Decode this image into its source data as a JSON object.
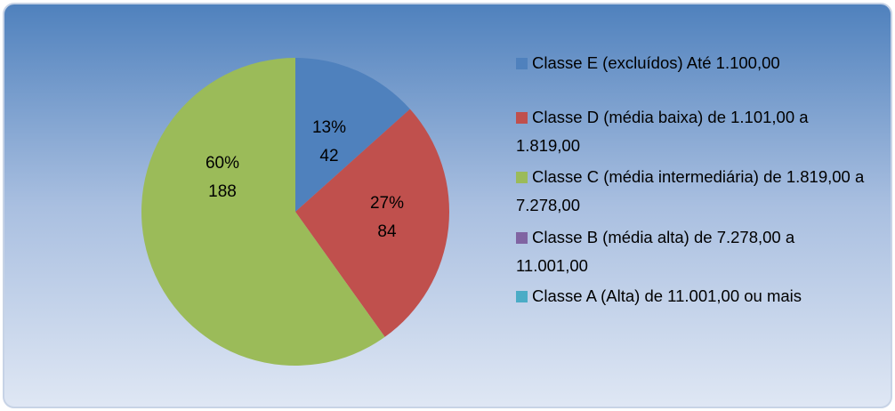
{
  "chart_data": {
    "type": "pie",
    "categories": [
      "Classe E (excluídos) Até 1.100,00",
      "Classe D (média baixa) de 1.101,00 a 1.819,00",
      "Classe C (média intermediária) de 1.819,00 a 7.278,00",
      "Classe B (média alta) de 7.278,00 a 11.001,00",
      "Classe A (Alta) de 11.001,00 ou mais"
    ],
    "values": [
      42,
      84,
      188,
      0,
      0
    ],
    "percent_labels": [
      "13%",
      "27%",
      "60%",
      null,
      null
    ],
    "colors": [
      "#4f81bd",
      "#c0504d",
      "#9bbb59",
      "#8064a2",
      "#4bacc6"
    ],
    "legend": "right"
  }
}
